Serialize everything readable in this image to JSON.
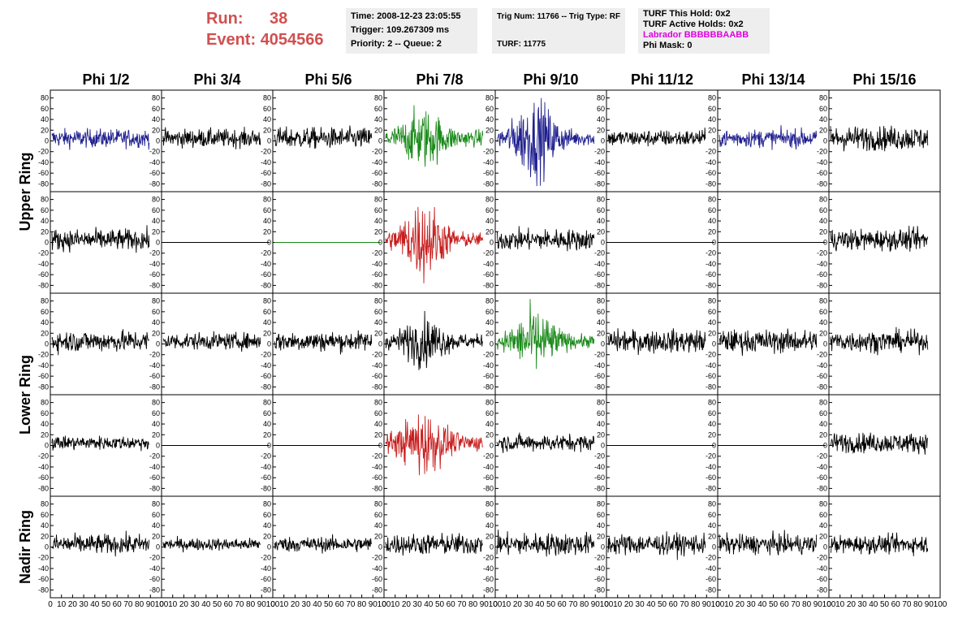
{
  "header": {
    "run_label": "Run:",
    "run_value": "38",
    "event_label": "Event:",
    "event_value": "4054566",
    "time": "Time: 2008-12-23 23:05:55",
    "trigger": "Trigger: 109.267309 ms",
    "priority": "Priority: 2 -- Queue: 2",
    "trig_num": "Trig Num: 11766 -- Trig Type: RF",
    "turf": "TURF: 11775",
    "turf_this_hold": "TURF This Hold: 0x2",
    "turf_active_holds": "TURF Active Holds: 0x2",
    "labrador": "Labrador BBBBBBAABB",
    "phi_mask": "Phi Mask: 0"
  },
  "columns": [
    "Phi 1/2",
    "Phi 3/4",
    "Phi 5/6",
    "Phi 7/8",
    "Phi 9/10",
    "Phi 11/12",
    "Phi 13/14",
    "Phi 15/16"
  ],
  "ring_labels": [
    {
      "text": "Upper Ring"
    },
    {
      "text": "Lower Ring"
    },
    {
      "text": "Nadir Ring"
    }
  ],
  "chart_data": {
    "type": "line",
    "title": "",
    "xlabel": "",
    "ylabel": "",
    "xlim": [
      0,
      100
    ],
    "ylim": [
      -90,
      90
    ],
    "yticks": [
      "80",
      "60",
      "40",
      "20",
      "0",
      "-20",
      "-40",
      "-60",
      "-80"
    ],
    "xticks": [
      "0",
      "10",
      "20",
      "30",
      "40",
      "50",
      "60",
      "70",
      "80",
      "90",
      "100"
    ],
    "colors": {
      "black": "#000000",
      "blue": "#1f1f8f",
      "green": "#1a8a1a",
      "red": "#c81e1e"
    },
    "rows": [
      {
        "ring": "Upper Ring",
        "cells": [
          {
            "color": "blue",
            "amp": 12,
            "burst": 0
          },
          {
            "color": "black",
            "amp": 12,
            "burst": 0
          },
          {
            "color": "black",
            "amp": 14,
            "burst": 0
          },
          {
            "color": "green",
            "amp": 18,
            "burst": 30
          },
          {
            "color": "blue",
            "amp": 16,
            "burst": 45
          },
          {
            "color": "black",
            "amp": 11,
            "burst": 0
          },
          {
            "color": "blue",
            "amp": 12,
            "burst": 0
          },
          {
            "color": "black",
            "amp": 16,
            "burst": 0
          }
        ]
      },
      {
        "ring": "Upper Ring",
        "cells": [
          {
            "color": "black",
            "amp": 14,
            "burst": 0
          },
          {
            "color": "black",
            "amp": 0,
            "burst": 0
          },
          {
            "color": "green",
            "amp": 0,
            "burst": 0
          },
          {
            "color": "red",
            "amp": 15,
            "burst": 45
          },
          {
            "color": "black",
            "amp": 14,
            "burst": 0
          },
          {
            "color": "black",
            "amp": 0,
            "burst": 0
          },
          {
            "color": "black",
            "amp": 0,
            "burst": 0
          },
          {
            "color": "black",
            "amp": 14,
            "burst": 0
          }
        ]
      },
      {
        "ring": "Lower Ring",
        "cells": [
          {
            "color": "black",
            "amp": 14,
            "burst": 0
          },
          {
            "color": "black",
            "amp": 11,
            "burst": 0
          },
          {
            "color": "black",
            "amp": 13,
            "burst": 0
          },
          {
            "color": "black",
            "amp": 15,
            "burst": 25
          },
          {
            "color": "green",
            "amp": 14,
            "burst": 35
          },
          {
            "color": "black",
            "amp": 15,
            "burst": 0
          },
          {
            "color": "black",
            "amp": 15,
            "burst": 0
          },
          {
            "color": "black",
            "amp": 14,
            "burst": 0
          }
        ]
      },
      {
        "ring": "Lower Ring",
        "cells": [
          {
            "color": "black",
            "amp": 9,
            "burst": 0
          },
          {
            "color": "black",
            "amp": 0,
            "burst": 0
          },
          {
            "color": "black",
            "amp": 0,
            "burst": 0
          },
          {
            "color": "red",
            "amp": 18,
            "burst": 35
          },
          {
            "color": "black",
            "amp": 11,
            "burst": 0
          },
          {
            "color": "black",
            "amp": 0,
            "burst": 0
          },
          {
            "color": "black",
            "amp": 0,
            "burst": 0
          },
          {
            "color": "black",
            "amp": 13,
            "burst": 0
          }
        ]
      },
      {
        "ring": "Nadir Ring",
        "cells": [
          {
            "color": "black",
            "amp": 13,
            "burst": 0
          },
          {
            "color": "black",
            "amp": 8,
            "burst": 0
          },
          {
            "color": "black",
            "amp": 10,
            "burst": 0
          },
          {
            "color": "black",
            "amp": 14,
            "burst": 0
          },
          {
            "color": "black",
            "amp": 15,
            "burst": 0
          },
          {
            "color": "black",
            "amp": 14,
            "burst": 0
          },
          {
            "color": "black",
            "amp": 13,
            "burst": 0
          },
          {
            "color": "black",
            "amp": 12,
            "burst": 0
          }
        ]
      }
    ]
  }
}
